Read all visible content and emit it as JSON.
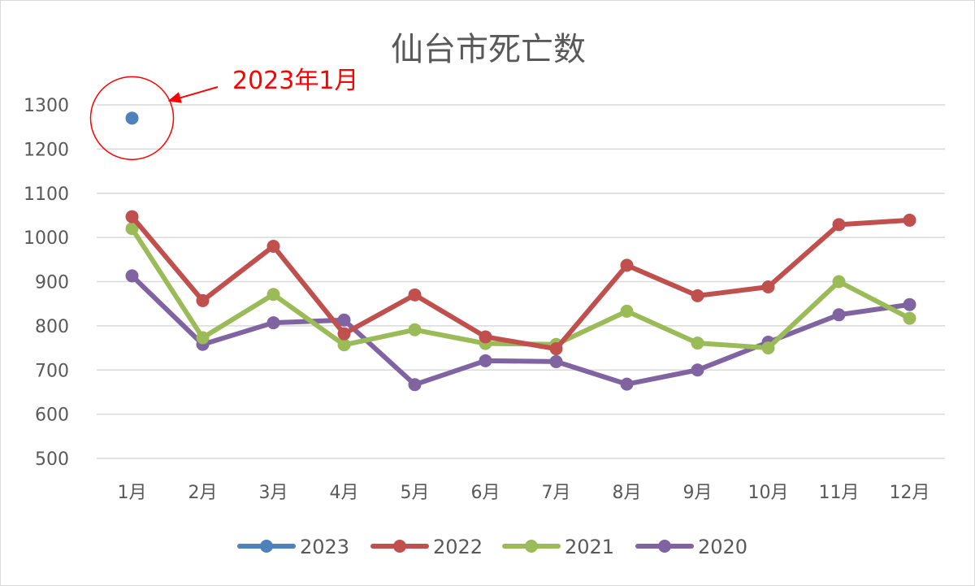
{
  "chart_data": {
    "type": "line",
    "title": "仙台市死亡数",
    "xlabel": "",
    "ylabel": "",
    "categories": [
      "1月",
      "2月",
      "3月",
      "4月",
      "5月",
      "6月",
      "7月",
      "8月",
      "9月",
      "10月",
      "11月",
      "12月"
    ],
    "ylim": [
      500,
      1300
    ],
    "yticks": [
      500,
      600,
      700,
      800,
      900,
      1000,
      1100,
      1200,
      1300
    ],
    "grid": "horizontal",
    "legend_position": "bottom",
    "series": [
      {
        "name": "2023",
        "color": "#4f81bd",
        "values": [
          1270,
          null,
          null,
          null,
          null,
          null,
          null,
          null,
          null,
          null,
          null,
          null
        ]
      },
      {
        "name": "2022",
        "color": "#c0504d",
        "values": [
          1047,
          857,
          980,
          782,
          870,
          775,
          748,
          937,
          868,
          888,
          1029,
          1039
        ]
      },
      {
        "name": "2021",
        "color": "#9bbb59",
        "values": [
          1020,
          773,
          871,
          757,
          791,
          760,
          758,
          833,
          761,
          750,
          900,
          817
        ]
      },
      {
        "name": "2020",
        "color": "#8064a2",
        "values": [
          913,
          758,
          807,
          813,
          667,
          721,
          719,
          668,
          700,
          763,
          825,
          848
        ]
      }
    ],
    "annotation": {
      "text": "2023年1月",
      "color": "#ff0000",
      "target_series": "2023",
      "target_category": "1月"
    }
  }
}
